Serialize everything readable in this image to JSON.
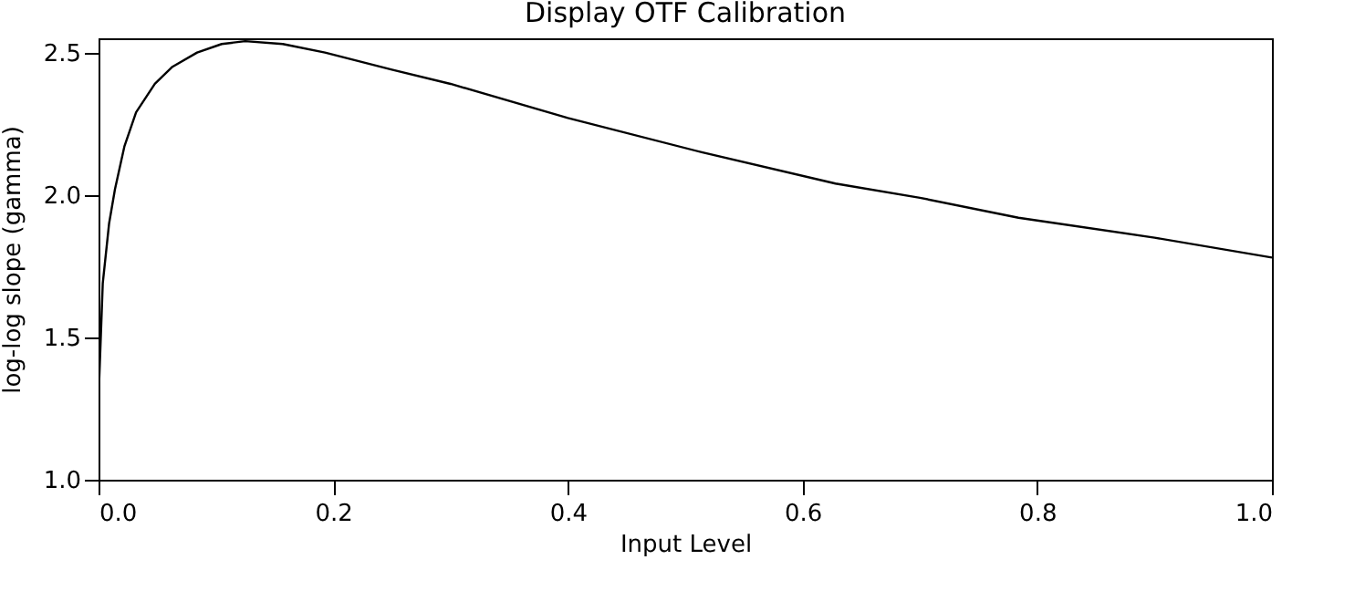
{
  "chart_data": {
    "type": "line",
    "title": "Display OTF Calibration",
    "xlabel": "Input Level",
    "ylabel": "log-log slope (gamma)",
    "x": [
      0.0005,
      0.0036,
      0.009,
      0.014,
      0.022,
      0.032,
      0.048,
      0.063,
      0.084,
      0.105,
      0.125,
      0.157,
      0.193,
      0.25,
      0.3,
      0.4,
      0.514,
      0.628,
      0.7,
      0.784,
      0.9,
      1.0
    ],
    "series": [
      {
        "color": "#000000",
        "values": [
          1.34,
          1.69,
          1.9,
          2.02,
          2.17,
          2.29,
          2.39,
          2.45,
          2.5,
          2.53,
          2.54,
          2.53,
          2.5,
          2.44,
          2.39,
          2.27,
          2.15,
          2.04,
          1.99,
          1.92,
          1.85,
          1.78
        ]
      }
    ],
    "xlim": [
      0,
      1
    ],
    "xticks": [
      {
        "value": 0,
        "label": "0.0"
      },
      0.2,
      0.4,
      0.6,
      0.8,
      {
        "value": 1,
        "label": "1.0"
      }
    ],
    "ylim": [
      1,
      2.55
    ],
    "yticks": [
      {
        "value": 1,
        "label": "1.0"
      },
      1.5,
      {
        "value": 2,
        "label": "2.0"
      },
      2.5
    ],
    "grid": false,
    "line_style": "solid"
  }
}
